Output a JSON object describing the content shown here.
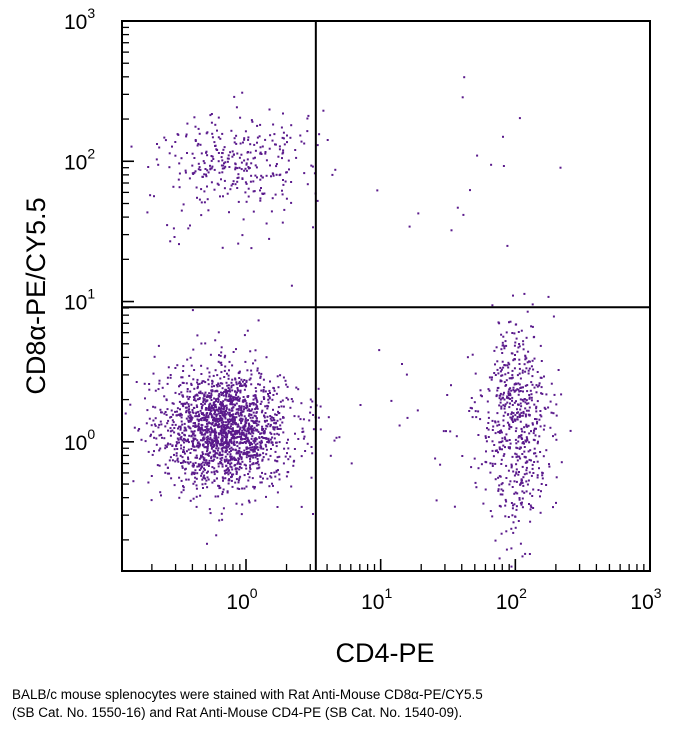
{
  "chart_data": {
    "type": "scatter",
    "subtype": "flow-cytometry-quadrant-dot-plot",
    "xlabel": "CD4-PE",
    "ylabel": "CD8α-PE/CY5.5",
    "x_scale": "log",
    "y_scale": "log",
    "xlim": [
      0.12,
      1000
    ],
    "ylim": [
      0.12,
      1000
    ],
    "x_ticks": [
      {
        "value": 1,
        "base": "10",
        "exp": "0"
      },
      {
        "value": 10,
        "base": "10",
        "exp": "1"
      },
      {
        "value": 100,
        "base": "10",
        "exp": "2"
      },
      {
        "value": 1000,
        "base": "10",
        "exp": "3"
      }
    ],
    "y_ticks": [
      {
        "value": 1,
        "base": "10",
        "exp": "0"
      },
      {
        "value": 10,
        "base": "10",
        "exp": "1"
      },
      {
        "value": 100,
        "base": "10",
        "exp": "2"
      },
      {
        "value": 1000,
        "base": "10",
        "exp": "3"
      }
    ],
    "quadrant_gates": {
      "x": 3.3,
      "y": 9.1
    },
    "point_color": "#5a1a8c",
    "populations": [
      {
        "name": "CD4-CD8- (lower-left)",
        "center": [
          0.7,
          1.25
        ],
        "spread_log10": [
          0.22,
          0.2
        ],
        "count": 1700
      },
      {
        "name": "CD4-CD8- sparse halo",
        "center": [
          0.7,
          1.1
        ],
        "spread_log10": [
          0.4,
          0.35
        ],
        "count": 250
      },
      {
        "name": "CD4+ (lower-right)",
        "center": [
          100,
          1.6
        ],
        "spread_log10": [
          0.13,
          0.3
        ],
        "count": 520
      },
      {
        "name": "CD4+ low tail",
        "center": [
          110,
          0.45
        ],
        "spread_log10": [
          0.1,
          0.25
        ],
        "count": 90
      },
      {
        "name": "CD4 intermediate scatter",
        "center": [
          20,
          1.5
        ],
        "spread_log10": [
          0.45,
          0.35
        ],
        "count": 30
      },
      {
        "name": "CD8+ (upper-left)",
        "center": [
          0.85,
          105
        ],
        "spread_log10": [
          0.28,
          0.17
        ],
        "count": 300
      },
      {
        "name": "CD8+ sparse tail",
        "center": [
          0.7,
          50
        ],
        "spread_log10": [
          0.35,
          0.25
        ],
        "count": 40
      },
      {
        "name": "Double positive (upper-right)",
        "center": [
          30,
          70
        ],
        "spread_log10": [
          0.5,
          0.35
        ],
        "count": 16
      }
    ]
  },
  "caption": {
    "line1": "BALB/c mouse splenocytes were stained with Rat Anti-Mouse CD8α-PE/CY5.5",
    "line2": "(SB Cat. No. 1550-16) and Rat Anti-Mouse CD4-PE (SB Cat. No. 1540-09)."
  }
}
